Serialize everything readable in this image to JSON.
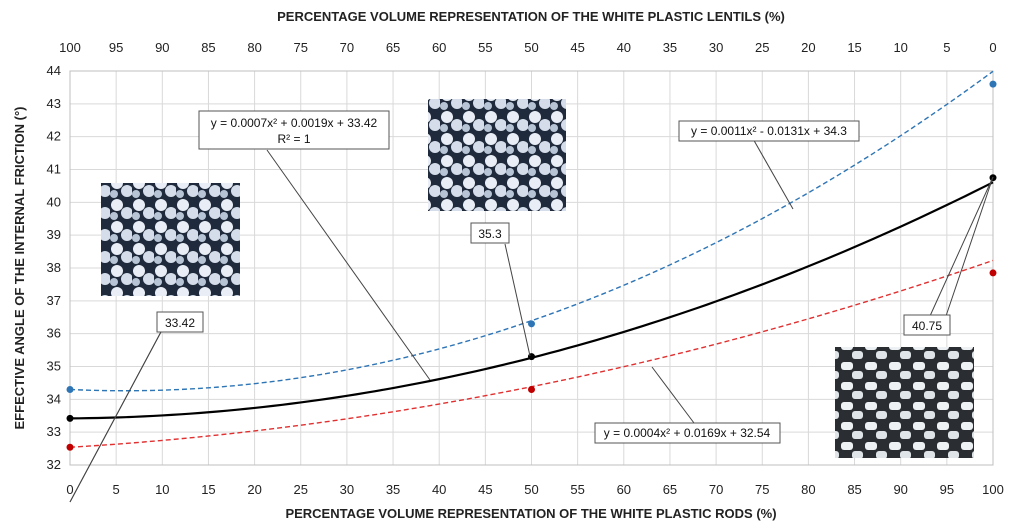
{
  "chart_data": {
    "type": "line",
    "x_label": "PERCENTAGE VOLUME REPRESENTATION OF THE WHITE PLASTIC RODS (%)",
    "x2_label": "PERCENTAGE VOLUME REPRESENTATION OF THE WHITE PLASTIC LENTILS (%)",
    "y_label": "EFFECTIVE ANGLE OF THE INTERNAL FRICTION (°)",
    "x_range": [
      0,
      100
    ],
    "x2_range": [
      100,
      0
    ],
    "y_range": [
      32,
      44
    ],
    "x_ticks": [
      "0",
      "5",
      "10",
      "15",
      "20",
      "25",
      "30",
      "35",
      "40",
      "45",
      "50",
      "55",
      "60",
      "65",
      "70",
      "75",
      "80",
      "85",
      "90",
      "95",
      "100"
    ],
    "x2_ticks": [
      "100",
      "95",
      "90",
      "85",
      "80",
      "75",
      "70",
      "65",
      "60",
      "55",
      "50",
      "45",
      "40",
      "35",
      "30",
      "25",
      "20",
      "15",
      "10",
      "5",
      "0"
    ],
    "y_ticks": [
      "32",
      "33",
      "34",
      "35",
      "36",
      "37",
      "38",
      "39",
      "40",
      "41",
      "42",
      "43",
      "44"
    ],
    "grid": true,
    "series": [
      {
        "points": [
          [
            0,
            34.3
          ],
          [
            50,
            36.3
          ],
          [
            100,
            43.6
          ]
        ],
        "trend": [
          0.0011,
          -0.0131,
          34.3
        ],
        "color": "#2e75b6",
        "style": "dashed",
        "marker_color": "#2e75b6"
      },
      {
        "points": [
          [
            0,
            33.42
          ],
          [
            50,
            35.3
          ],
          [
            100,
            40.75
          ]
        ],
        "trend": [
          0.0007,
          0.0019,
          33.42
        ],
        "color": "#000000",
        "style": "solid",
        "marker_color": "#000000"
      },
      {
        "points": [
          [
            0,
            32.54
          ],
          [
            50,
            34.3
          ],
          [
            100,
            37.85
          ]
        ],
        "trend": [
          0.0004,
          0.0169,
          32.54
        ],
        "color": "#e03030",
        "style": "dashed",
        "marker_color": "#c00000"
      }
    ],
    "annotations": {
      "eq_black_line1": "y = 0.0007x² + 0.0019x + 33.42",
      "eq_black_line2": "R² = 1",
      "eq_blue": "y = 0.0011x² - 0.0131x + 34.3",
      "eq_red": "y = 0.0004x² + 0.0169x + 32.54",
      "label_0": "33.42",
      "label_50": "35.3",
      "label_100": "40.75"
    },
    "photos": [
      {
        "name": "photo-mixed-left",
        "tone": "#8fa6c2"
      },
      {
        "name": "photo-lentils",
        "tone": "#a9bbd6"
      },
      {
        "name": "photo-rods",
        "tone": "#c9d1d7"
      }
    ]
  }
}
